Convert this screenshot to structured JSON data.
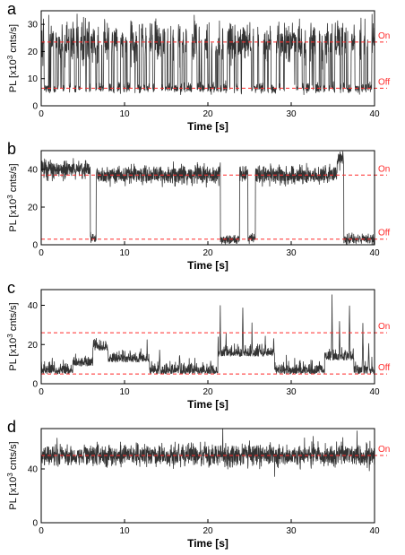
{
  "colors": {
    "trace": "#333333",
    "reference": "#ff2a2a",
    "axis": "#000000"
  },
  "chart_data": [
    {
      "type": "line",
      "panel_label": "a",
      "xlabel": "Time [s]",
      "ylabel_parts": [
        "PL [x10",
        "3",
        " cnts/s]"
      ],
      "xlim": [
        0,
        40
      ],
      "ylim": [
        0,
        35
      ],
      "xticks": [
        0,
        10,
        20,
        30,
        40
      ],
      "yticks": [
        0,
        10,
        20,
        30
      ],
      "reference_lines": [
        {
          "label": "On",
          "value": 23.5
        },
        {
          "label": "Off",
          "value": 6.5
        }
      ],
      "series": [
        {
          "mode": "blinking",
          "x_range": [
            0,
            40
          ],
          "levels": [
            23.5,
            6.5
          ],
          "noise": [
            3.5,
            1.0
          ]
        }
      ]
    },
    {
      "type": "line",
      "panel_label": "b",
      "xlabel": "Time [s]",
      "ylabel_parts": [
        "PL [x10",
        "3",
        " cnts/s]"
      ],
      "xlim": [
        0,
        40
      ],
      "ylim": [
        0,
        50
      ],
      "xticks": [
        0,
        10,
        20,
        30,
        40
      ],
      "yticks": [
        0,
        20,
        40
      ],
      "reference_lines": [
        {
          "label": "On",
          "value": 37
        },
        {
          "label": "Off",
          "value": 3
        }
      ],
      "series": [
        {
          "mode": "segments",
          "noise": 2.5,
          "segments": [
            [
              0,
              5.9,
              40
            ],
            [
              5.9,
              6.6,
              3
            ],
            [
              6.6,
              21.5,
              37
            ],
            [
              21.5,
              23.8,
              3
            ],
            [
              23.8,
              24.8,
              37
            ],
            [
              24.8,
              25.7,
              3
            ],
            [
              25.7,
              35.5,
              37
            ],
            [
              35.5,
              36.3,
              45
            ],
            [
              36.3,
              40,
              3
            ]
          ]
        }
      ]
    },
    {
      "type": "line",
      "panel_label": "c",
      "xlabel": "Time [s]",
      "ylabel_parts": [
        "PL [x10",
        "3",
        " cnts/s]"
      ],
      "xlim": [
        0,
        40
      ],
      "ylim": [
        0,
        48
      ],
      "xticks": [
        0,
        10,
        20,
        30,
        40
      ],
      "yticks": [
        0,
        20,
        40
      ],
      "reference_lines": [
        {
          "label": "On",
          "value": 26
        },
        {
          "label": "Off",
          "value": 5
        }
      ],
      "series": [
        {
          "mode": "spiky",
          "base": 5,
          "noise": 2.5,
          "bumps": [
            [
              3.8,
              6.2,
              9
            ],
            [
              6.2,
              8.0,
              17
            ],
            [
              8.0,
              13.0,
              11
            ],
            [
              21.2,
              28.0,
              14
            ],
            [
              34.0,
              37.5,
              12
            ]
          ],
          "spikes": [
            [
              7.0,
              25
            ],
            [
              9.5,
              16
            ],
            [
              11.3,
              20
            ],
            [
              12.7,
              24
            ],
            [
              14.2,
              18
            ],
            [
              16.6,
              18
            ],
            [
              21.5,
              40
            ],
            [
              22.2,
              28
            ],
            [
              24.2,
              44
            ],
            [
              25.3,
              34
            ],
            [
              26.9,
              28
            ],
            [
              27.9,
              29
            ],
            [
              34.9,
              47
            ],
            [
              35.8,
              33
            ],
            [
              37.0,
              48
            ],
            [
              38.6,
              33
            ],
            [
              39.3,
              22
            ]
          ]
        }
      ]
    },
    {
      "type": "line",
      "panel_label": "d",
      "xlabel": "Time [s]",
      "ylabel_parts": [
        "PL [x10",
        "3",
        " cnts/s]"
      ],
      "xlim": [
        0,
        40
      ],
      "ylim": [
        0,
        70
      ],
      "xticks": [
        0,
        10,
        20,
        30,
        40
      ],
      "yticks": [
        0,
        40
      ],
      "reference_lines": [
        {
          "label": "On",
          "value": 50
        }
      ],
      "series": [
        {
          "mode": "steady",
          "level": 50,
          "noise": 4.0
        }
      ]
    }
  ]
}
